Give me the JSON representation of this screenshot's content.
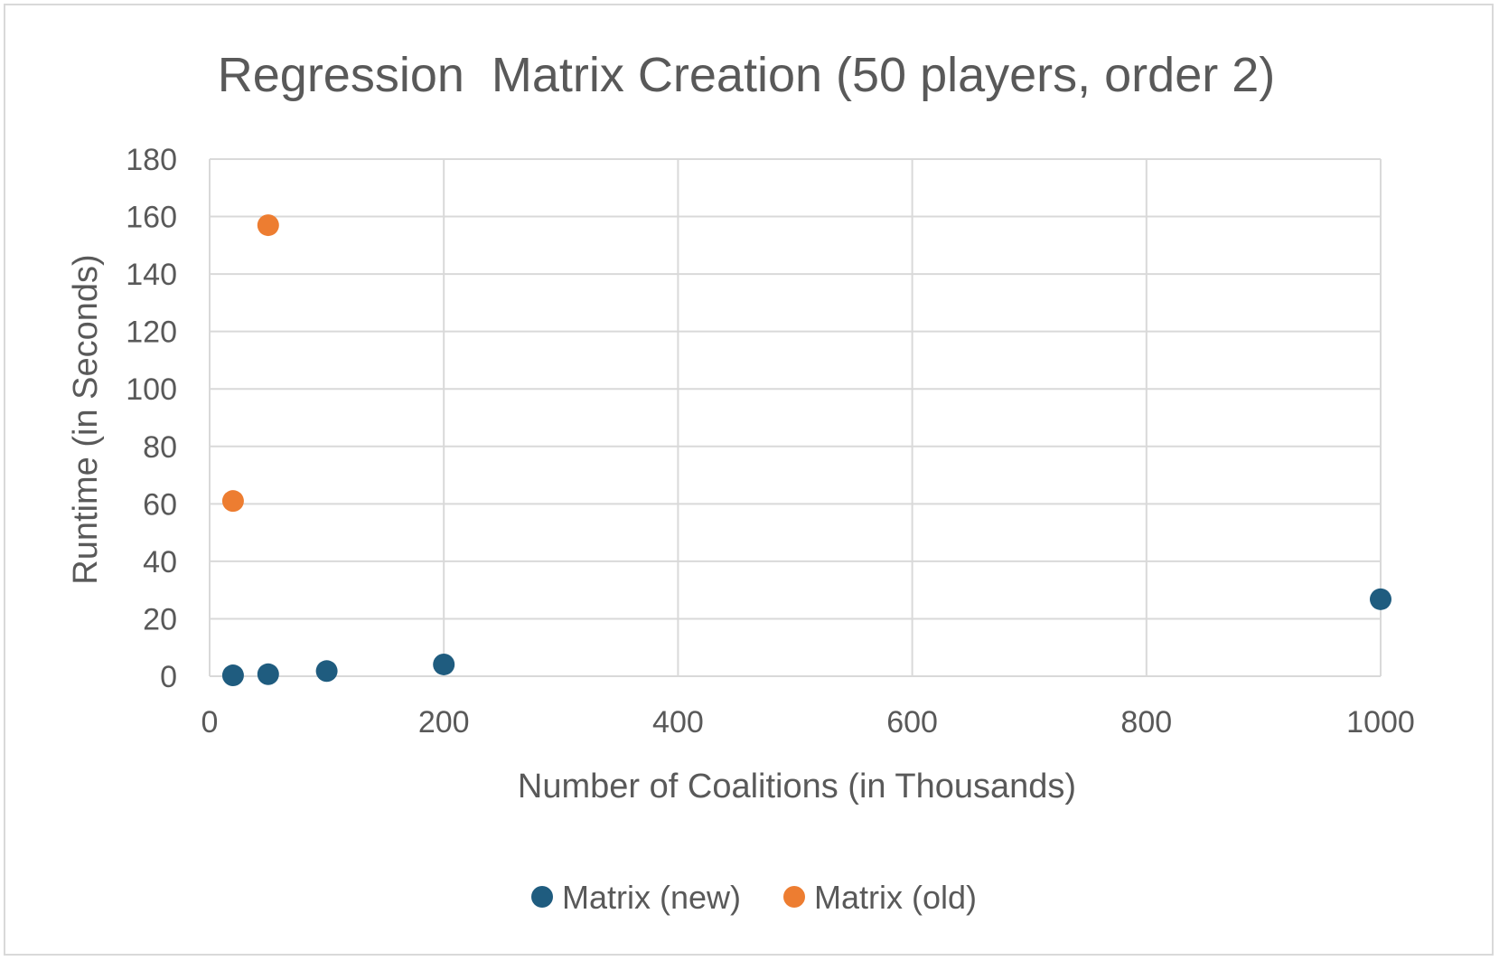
{
  "chart_data": {
    "type": "scatter",
    "title": "Regression  Matrix Creation (50 players, order 2)",
    "xlabel": "Number of Coalitions (in Thousands)",
    "ylabel": "Runtime (in Seconds)",
    "xlim": [
      0,
      1000
    ],
    "ylim": [
      0,
      180
    ],
    "xticks": [
      "0",
      "200",
      "400",
      "600",
      "800",
      "1000"
    ],
    "yticks": [
      "0",
      "20",
      "40",
      "60",
      "80",
      "100",
      "120",
      "140",
      "160",
      "180"
    ],
    "grid": true,
    "legend_position": "bottom",
    "series": [
      {
        "name": "Matrix (new)",
        "color": "#1f5c7f",
        "points": [
          {
            "x": 20,
            "y": 0.3
          },
          {
            "x": 50,
            "y": 0.7
          },
          {
            "x": 100,
            "y": 1.8
          },
          {
            "x": 200,
            "y": 4.1
          },
          {
            "x": 1000,
            "y": 26.8
          }
        ]
      },
      {
        "name": "Matrix (old)",
        "color": "#ed7d31",
        "points": [
          {
            "x": 20,
            "y": 61
          },
          {
            "x": 50,
            "y": 157
          }
        ]
      }
    ]
  }
}
